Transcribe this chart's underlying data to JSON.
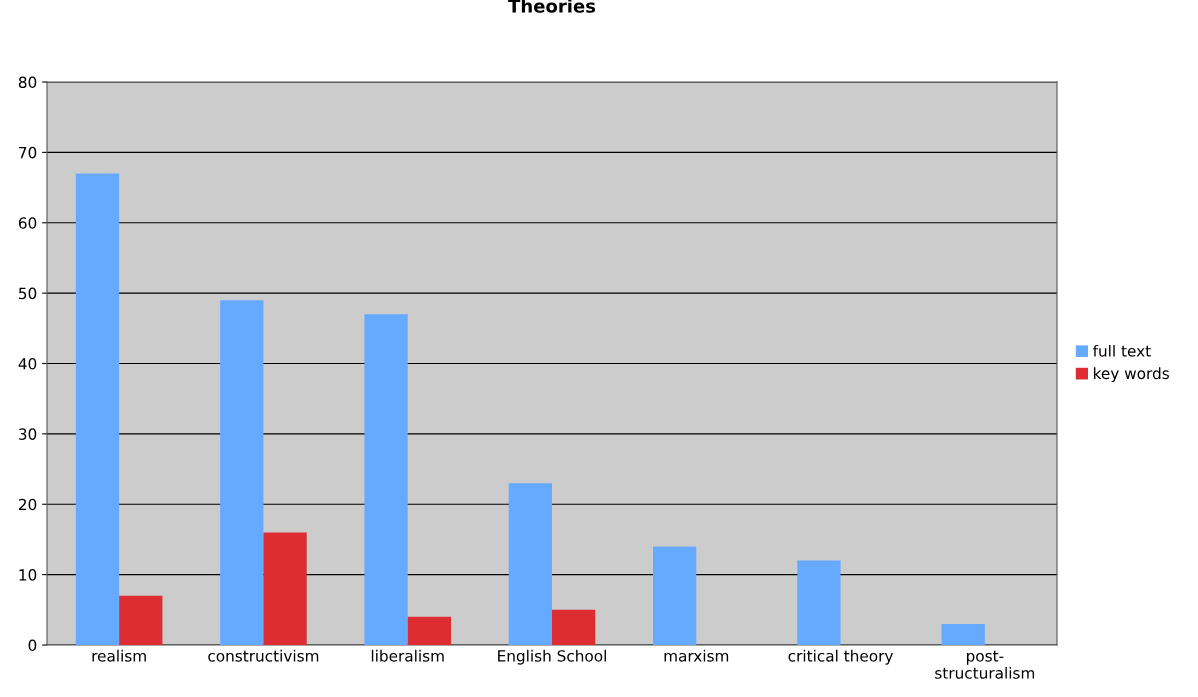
{
  "chart_data": {
    "type": "bar",
    "title": "Theories",
    "categories": [
      "realism",
      "constructivism",
      "liberalism",
      "English School",
      "marxism",
      "critical theory",
      "post-\nstructuralism"
    ],
    "series": [
      {
        "name": "full text",
        "color": "#66aaff",
        "values": [
          67,
          49,
          47,
          23,
          14,
          12,
          3
        ]
      },
      {
        "name": "key words",
        "color": "#dd2d33",
        "values": [
          7,
          16,
          4,
          5,
          null,
          null,
          null
        ]
      }
    ],
    "ylim": [
      0,
      80
    ],
    "yticks": [
      0,
      10,
      20,
      30,
      40,
      50,
      60,
      70,
      80
    ],
    "grid": "y",
    "legend": "right"
  }
}
